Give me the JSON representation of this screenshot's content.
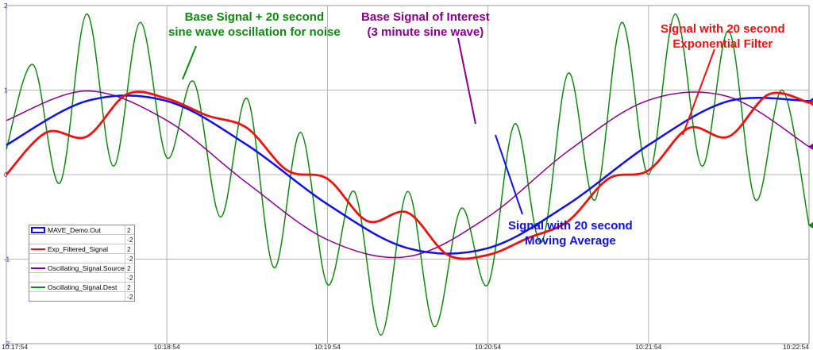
{
  "chart_data": {
    "type": "line",
    "x_ticks": [
      "10:17:54",
      "10:18:54",
      "10:19:54",
      "10:20:54",
      "10:21:54",
      "10:22:54"
    ],
    "y_ticks": [
      "2",
      "1",
      "0",
      "-1",
      "-2"
    ],
    "ylim": [
      -2,
      2
    ],
    "grid": true,
    "series": [
      {
        "name": "MAVE_Demo.Out",
        "color": "#1010e8",
        "description": "Signal with 20 second Moving Average",
        "range": [
          "2",
          "-2"
        ],
        "x_seconds": [
          0,
          30,
          60,
          90,
          120,
          150,
          180,
          210,
          240,
          270,
          300
        ],
        "y": [
          0.35,
          0.87,
          0.87,
          0.35,
          -0.35,
          -0.87,
          -0.87,
          -0.35,
          0.35,
          0.87,
          0.87
        ]
      },
      {
        "name": "Exp_Filtered_Signal",
        "color": "#ee1111",
        "range": [
          "2",
          "-2"
        ],
        "x_seconds": [
          0,
          15,
          30,
          45,
          60,
          75,
          90,
          105,
          120,
          135,
          150,
          165,
          180,
          195,
          210,
          225,
          240,
          255,
          270,
          285,
          300
        ],
        "y": [
          0.0,
          0.5,
          0.45,
          0.95,
          0.9,
          0.7,
          0.55,
          0.05,
          -0.05,
          -0.55,
          -0.45,
          -0.95,
          -0.95,
          -0.75,
          -0.55,
          -0.05,
          0.05,
          0.55,
          0.45,
          0.95,
          0.85
        ]
      },
      {
        "name": "Oscillating_Signal.SourceB",
        "color": "#880088",
        "range": [
          "2",
          "-2"
        ],
        "x_seconds": [
          0,
          30,
          60,
          90,
          120,
          150,
          180,
          210,
          240,
          270,
          300
        ],
        "y": [
          0.64,
          0.99,
          0.64,
          -0.1,
          -0.77,
          -0.97,
          -0.5,
          0.28,
          0.88,
          0.92,
          0.33
        ]
      },
      {
        "name": "Oscillating_Signal.Dest",
        "color": "#118811",
        "range": [
          "2",
          "-2"
        ],
        "x_seconds": [
          0,
          10,
          20,
          30,
          40,
          50,
          60,
          70,
          80,
          90,
          100,
          110,
          120,
          130,
          140,
          150,
          160,
          170,
          180,
          190,
          200,
          210,
          220,
          230,
          240,
          250,
          260,
          270,
          280,
          290,
          300
        ],
        "y": [
          0.3,
          1.3,
          -0.1,
          1.9,
          0.1,
          1.8,
          0.2,
          1.1,
          -0.5,
          0.9,
          -1.1,
          0.5,
          -1.3,
          -0.2,
          -1.9,
          -0.2,
          -1.8,
          -0.4,
          -1.3,
          0.6,
          -0.8,
          1.2,
          -0.3,
          1.8,
          0.0,
          1.9,
          0.1,
          1.7,
          -0.3,
          1.0,
          -0.6
        ]
      }
    ],
    "annotations": [
      {
        "text": "Base Signal + 20 second sine wave oscillation for noise",
        "color": "#118811"
      },
      {
        "text": "Base Signal of Interest (3 minute sine wave)",
        "color": "#880088"
      },
      {
        "text": "Signal with 20 second Exponential Filter",
        "color": "#ee1111"
      },
      {
        "text": "Signal with 20 second Moving Average",
        "color": "#1010e8"
      }
    ]
  },
  "annotations": {
    "green": {
      "line1": "Base Signal + 20 second",
      "line2": "sine wave oscillation for noise"
    },
    "purple": {
      "line1": "Base Signal of Interest",
      "line2": "(3 minute sine wave)"
    },
    "red": {
      "line1": "Signal with 20 second",
      "line2": "Exponential Filter"
    },
    "blue": {
      "line1": "Signal with 20 second",
      "line2": "Moving Average"
    }
  },
  "legend": [
    {
      "name": "MAVE_Demo.Out",
      "color": "#1010e8",
      "hi": "2",
      "lo": "-2"
    },
    {
      "name": "Exp_Filtered_Signal",
      "color": "#ee1111",
      "hi": "2",
      "lo": "-2"
    },
    {
      "name": "Oscillating_Signal.SourceB",
      "color": "#880088",
      "hi": "2",
      "lo": "-2"
    },
    {
      "name": "Oscillating_Signal.Dest",
      "color": "#118811",
      "hi": "2",
      "lo": "-2"
    }
  ]
}
